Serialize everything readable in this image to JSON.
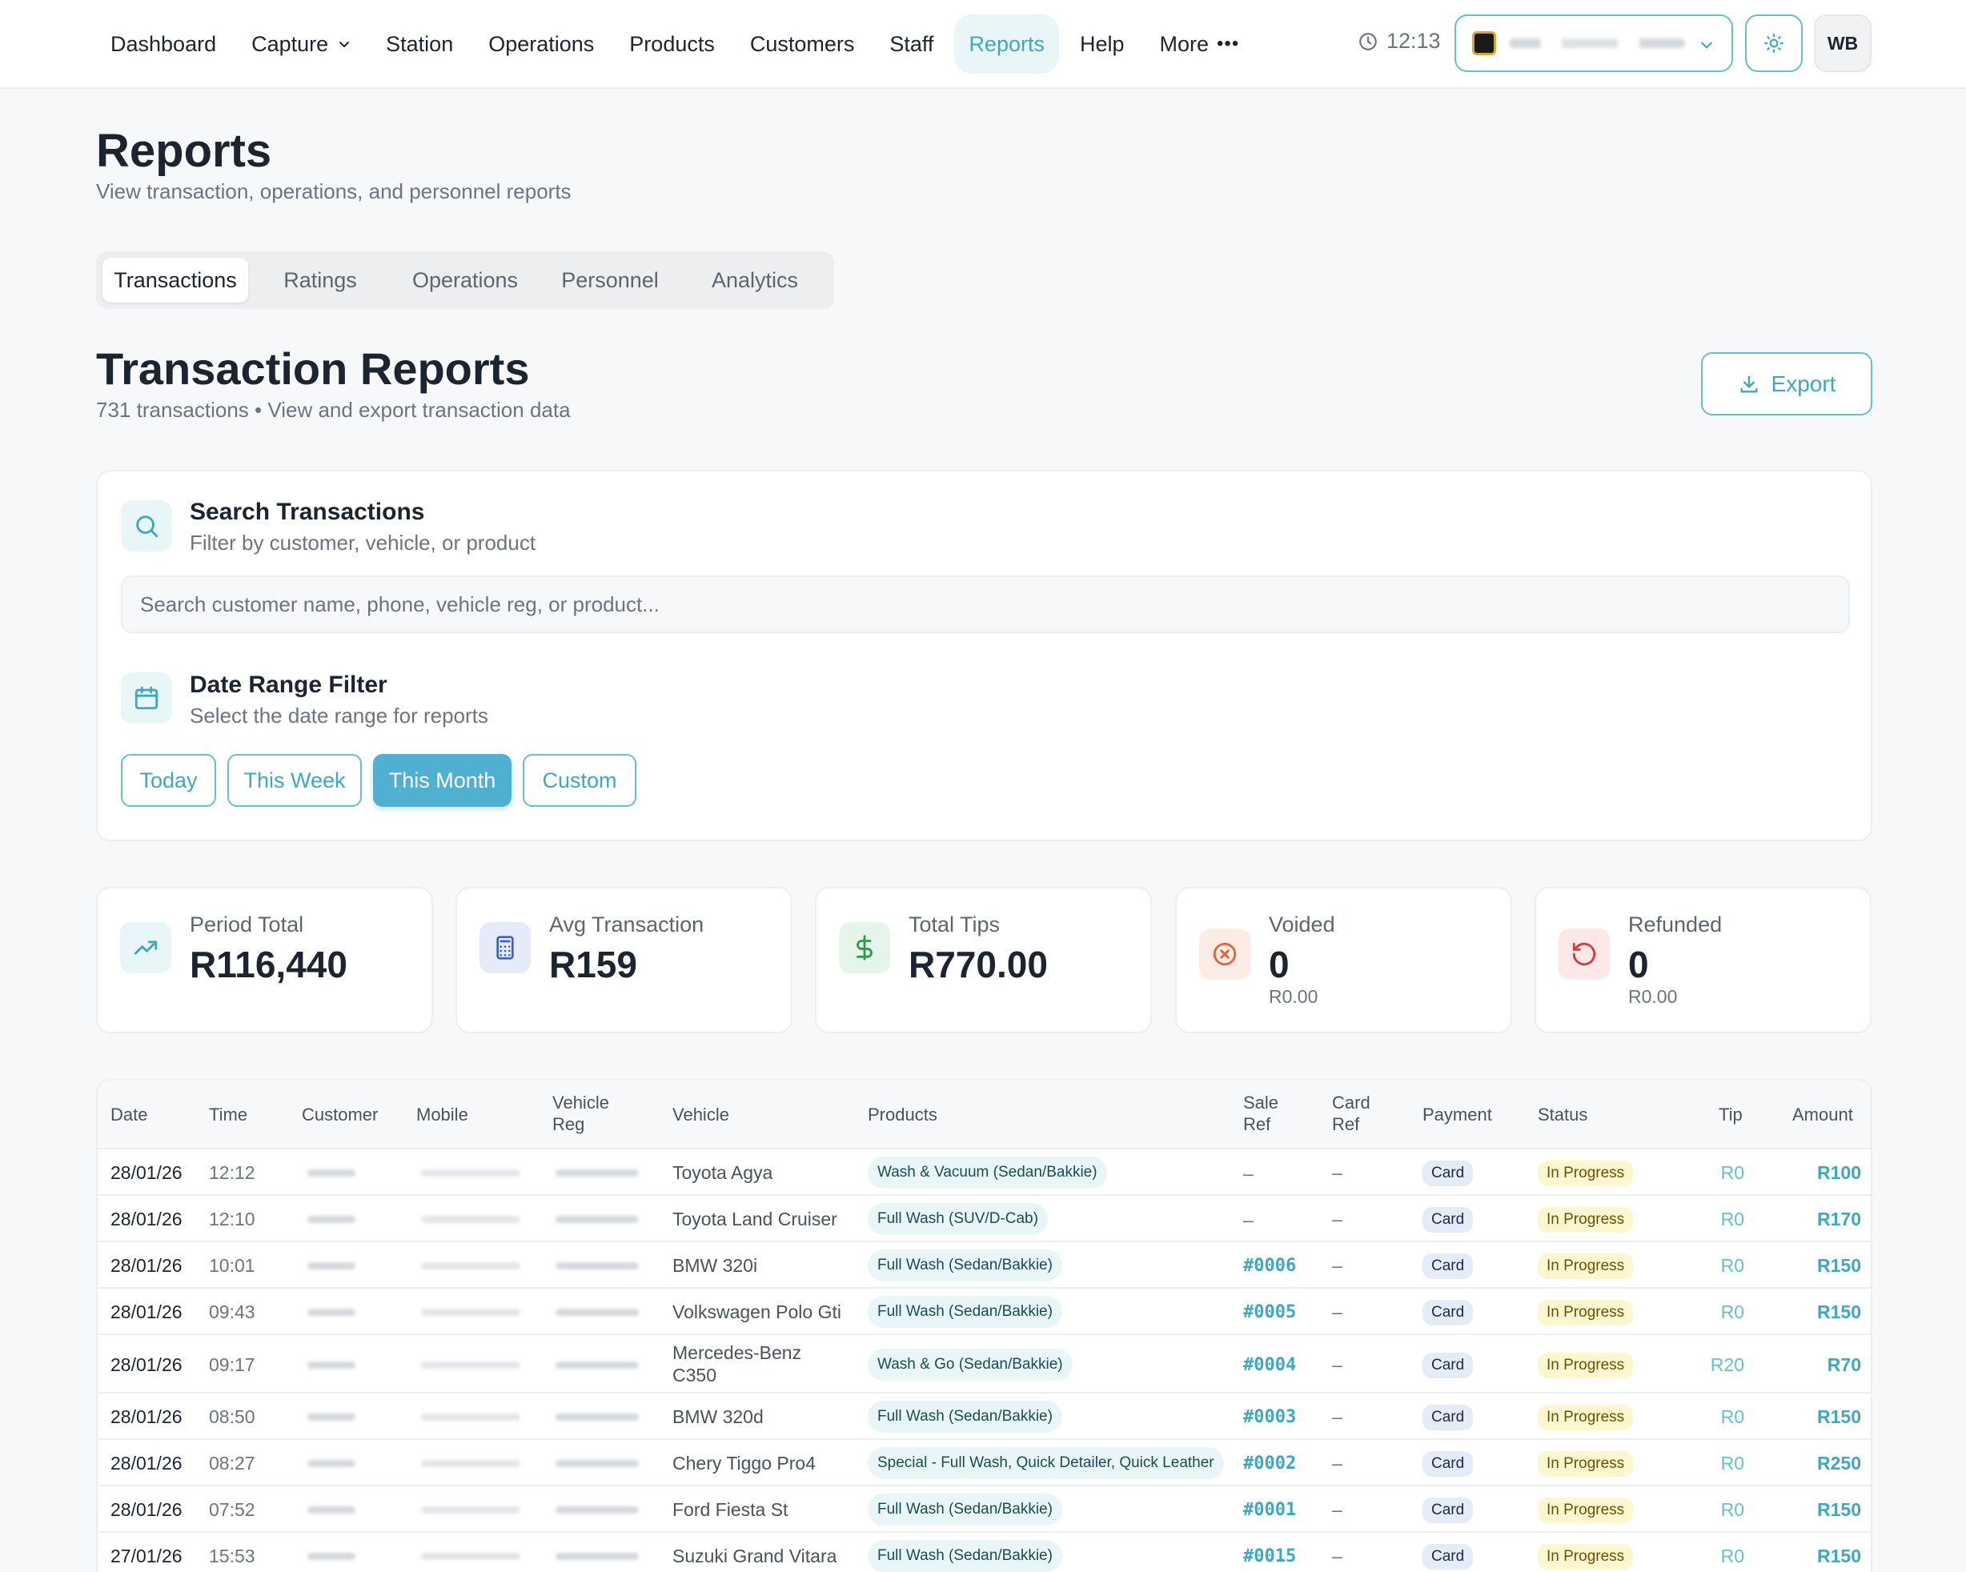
{
  "nav": {
    "items": [
      {
        "label": "Dashboard"
      },
      {
        "label": "Capture"
      },
      {
        "label": "Station"
      },
      {
        "label": "Operations"
      },
      {
        "label": "Products"
      },
      {
        "label": "Customers"
      },
      {
        "label": "Staff"
      },
      {
        "label": "Reports"
      },
      {
        "label": "Help"
      },
      {
        "label": "More"
      }
    ],
    "active": "Reports",
    "time": "12:13",
    "avatar_initials": "WB"
  },
  "page": {
    "title": "Reports",
    "subtitle": "View transaction, operations, and personnel reports"
  },
  "tabs": [
    {
      "label": "Transactions"
    },
    {
      "label": "Ratings"
    },
    {
      "label": "Operations"
    },
    {
      "label": "Personnel"
    },
    {
      "label": "Analytics"
    }
  ],
  "section": {
    "title": "Transaction Reports",
    "subtitle": "731 transactions • View and export transaction data",
    "export_label": "Export"
  },
  "filters": {
    "search_title": "Search Transactions",
    "search_subtitle": "Filter by customer, vehicle, or product",
    "search_placeholder": "Search customer name, phone, vehicle reg, or product...",
    "search_value": "",
    "date_title": "Date Range Filter",
    "date_subtitle": "Select the date range for reports",
    "ranges": [
      {
        "label": "Today"
      },
      {
        "label": "This Week"
      },
      {
        "label": "This Month"
      },
      {
        "label": "Custom"
      }
    ],
    "active_range": "This Month"
  },
  "stats": [
    {
      "label": "Period Total",
      "value": "R116,440",
      "note": ""
    },
    {
      "label": "Avg Transaction",
      "value": "R159",
      "note": ""
    },
    {
      "label": "Total Tips",
      "value": "R770.00",
      "note": ""
    },
    {
      "label": "Voided",
      "value": "0",
      "note": "R0.00"
    },
    {
      "label": "Refunded",
      "value": "0",
      "note": "R0.00"
    }
  ],
  "table": {
    "headers": {
      "date": "Date",
      "time": "Time",
      "customer": "Customer",
      "mobile": "Mobile",
      "vehicle_reg_1": "Vehicle",
      "vehicle_reg_2": "Reg",
      "vehicle": "Vehicle",
      "products": "Products",
      "sale_ref_1": "Sale",
      "sale_ref_2": "Ref",
      "card_ref_1": "Card",
      "card_ref_2": "Ref",
      "payment": "Payment",
      "status": "Status",
      "tip": "Tip",
      "amount": "Amount"
    },
    "rows": [
      {
        "date": "28/01/26",
        "time": "12:12",
        "vehicle": "Toyota Agya",
        "product": "Wash & Vacuum (Sedan/Bakkie)",
        "sale_ref": "–",
        "card_ref": "–",
        "payment": "Card",
        "status": "In Progress",
        "tip": "R0",
        "amount": "R100"
      },
      {
        "date": "28/01/26",
        "time": "12:10",
        "vehicle": "Toyota Land Cruiser",
        "product": "Full Wash (SUV/D-Cab)",
        "sale_ref": "–",
        "card_ref": "–",
        "payment": "Card",
        "status": "In Progress",
        "tip": "R0",
        "amount": "R170"
      },
      {
        "date": "28/01/26",
        "time": "10:01",
        "vehicle": "BMW 320i",
        "product": "Full Wash (Sedan/Bakkie)",
        "sale_ref": "#0006",
        "card_ref": "–",
        "payment": "Card",
        "status": "In Progress",
        "tip": "R0",
        "amount": "R150"
      },
      {
        "date": "28/01/26",
        "time": "09:43",
        "vehicle": "Volkswagen Polo Gti",
        "product": "Full Wash (Sedan/Bakkie)",
        "sale_ref": "#0005",
        "card_ref": "–",
        "payment": "Card",
        "status": "In Progress",
        "tip": "R0",
        "amount": "R150"
      },
      {
        "date": "28/01/26",
        "time": "09:17",
        "vehicle": "Mercedes-Benz C350",
        "product": "Wash & Go (Sedan/Bakkie)",
        "sale_ref": "#0004",
        "card_ref": "–",
        "payment": "Card",
        "status": "In Progress",
        "tip": "R20",
        "amount": "R70"
      },
      {
        "date": "28/01/26",
        "time": "08:50",
        "vehicle": "BMW 320d",
        "product": "Full Wash (Sedan/Bakkie)",
        "sale_ref": "#0003",
        "card_ref": "–",
        "payment": "Card",
        "status": "In Progress",
        "tip": "R0",
        "amount": "R150"
      },
      {
        "date": "28/01/26",
        "time": "08:27",
        "vehicle": "Chery Tiggo Pro4",
        "product": "Special - Full Wash, Quick Detailer, Quick Leather",
        "sale_ref": "#0002",
        "card_ref": "–",
        "payment": "Card",
        "status": "In Progress",
        "tip": "R0",
        "amount": "R250"
      },
      {
        "date": "28/01/26",
        "time": "07:52",
        "vehicle": "Ford Fiesta St",
        "product": "Full Wash (Sedan/Bakkie)",
        "sale_ref": "#0001",
        "card_ref": "–",
        "payment": "Card",
        "status": "In Progress",
        "tip": "R0",
        "amount": "R150"
      },
      {
        "date": "27/01/26",
        "time": "15:53",
        "vehicle": "Suzuki Grand Vitara",
        "product": "Full Wash (Sedan/Bakkie)",
        "sale_ref": "#0015",
        "card_ref": "–",
        "payment": "Card",
        "status": "In Progress",
        "tip": "R0",
        "amount": "R150"
      }
    ]
  },
  "colors": {
    "accent": "#3fa8bf",
    "accent_border": "#66c0d0",
    "active_range_bg": "#4fb0d2",
    "status_bg": "#fdf6cf",
    "payment_bg": "#e3ecf7"
  }
}
